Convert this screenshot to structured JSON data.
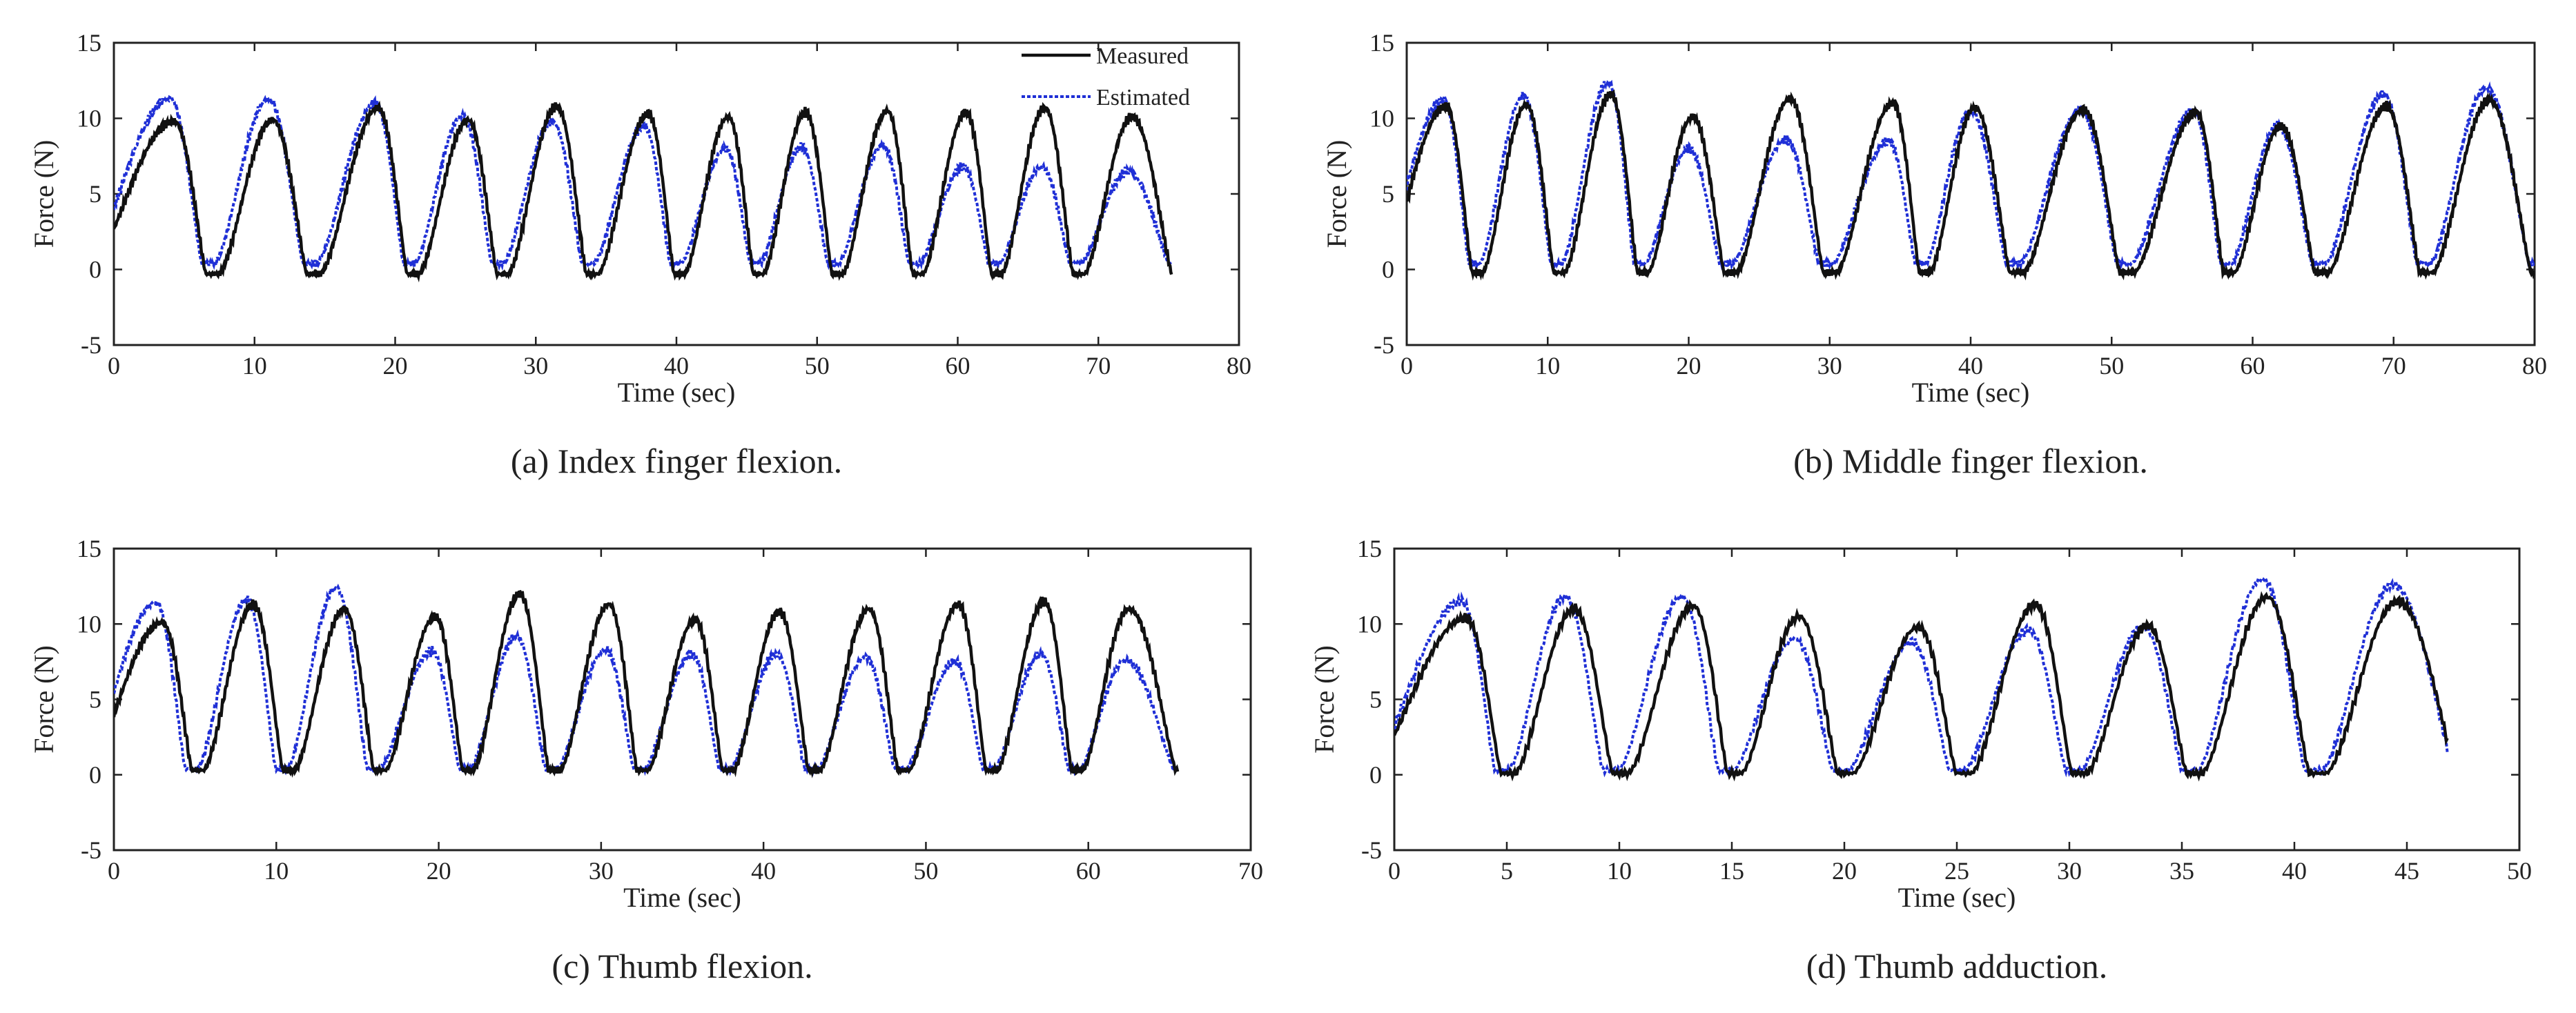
{
  "figure": {
    "colors": {
      "measured": "#111111",
      "estimated": "#1f2fd6",
      "axis": "#222222",
      "background": "#ffffff"
    }
  },
  "legend": {
    "measured": "Measured",
    "estimated": "Estimated"
  },
  "chart_data": [
    {
      "id": "a",
      "type": "line",
      "title": "(a) Index  finger flexion.",
      "xlabel": "Time (sec)",
      "ylabel": "Force (N)",
      "xlim": [
        0,
        80
      ],
      "ylim": [
        -5,
        15
      ],
      "xticks": [
        0,
        10,
        20,
        30,
        40,
        50,
        60,
        70,
        80
      ],
      "yticks": [
        -5,
        0,
        5,
        10,
        15
      ],
      "grid": false,
      "legend_location": "top-right",
      "series": [
        {
          "name": "Measured",
          "peaks": [
            [
              4.3,
              9.8
            ],
            [
              11.3,
              9.9
            ],
            [
              18.8,
              10.7
            ],
            [
              25.2,
              9.9
            ],
            [
              31.5,
              10.8
            ],
            [
              38.0,
              10.3
            ],
            [
              43.7,
              10.1
            ],
            [
              49.2,
              10.4
            ],
            [
              55.0,
              10.5
            ],
            [
              60.6,
              10.4
            ],
            [
              66.2,
              10.7
            ],
            [
              72.4,
              10.1
            ]
          ],
          "baseline": -0.3,
          "start": 0.0,
          "end": 75.2
        },
        {
          "name": "Estimated",
          "peaks": [
            [
              4.0,
              11.3
            ],
            [
              11.0,
              11.3
            ],
            [
              18.6,
              11.0
            ],
            [
              24.8,
              10.2
            ],
            [
              31.2,
              9.8
            ],
            [
              37.7,
              9.5
            ],
            [
              43.5,
              8.0
            ],
            [
              48.9,
              8.1
            ],
            [
              54.7,
              8.2
            ],
            [
              60.4,
              6.8
            ],
            [
              66.0,
              6.8
            ],
            [
              72.1,
              6.5
            ]
          ],
          "baseline": 0.4,
          "start": 0.0,
          "end": 75.2
        }
      ]
    },
    {
      "id": "b",
      "type": "line",
      "title": "(b) Middle finger flexion.",
      "xlabel": "Time (sec)",
      "ylabel": "Force (N)",
      "xlim": [
        0,
        80
      ],
      "ylim": [
        -5,
        15
      ],
      "xticks": [
        0,
        10,
        20,
        30,
        40,
        50,
        60,
        70,
        80
      ],
      "yticks": [
        -5,
        0,
        5,
        10,
        15
      ],
      "grid": false,
      "series": [
        {
          "name": "Measured",
          "peaks": [
            [
              2.8,
              10.8
            ],
            [
              8.5,
              10.9
            ],
            [
              14.5,
              11.6
            ],
            [
              20.3,
              10.1
            ],
            [
              27.2,
              11.3
            ],
            [
              34.5,
              11.0
            ],
            [
              40.3,
              10.7
            ],
            [
              48.0,
              10.6
            ],
            [
              56.0,
              10.4
            ],
            [
              62.0,
              9.5
            ],
            [
              69.5,
              10.8
            ],
            [
              76.8,
              11.2
            ]
          ],
          "baseline": -0.2,
          "start": 0.0,
          "end": 80.0
        },
        {
          "name": "Estimated",
          "peaks": [
            [
              2.6,
              11.2
            ],
            [
              8.3,
              11.5
            ],
            [
              14.3,
              12.4
            ],
            [
              20.0,
              8.0
            ],
            [
              26.9,
              8.6
            ],
            [
              34.2,
              8.5
            ],
            [
              40.0,
              10.5
            ],
            [
              47.8,
              10.5
            ],
            [
              55.8,
              10.5
            ],
            [
              61.8,
              9.5
            ],
            [
              69.3,
              11.6
            ],
            [
              76.6,
              12.0
            ]
          ],
          "baseline": 0.4,
          "start": 0.0,
          "end": 80.0
        }
      ]
    },
    {
      "id": "c",
      "type": "line",
      "title": "(c) Thumb flexion.",
      "xlabel": "Time (sec)",
      "ylabel": "Force (N)",
      "xlim": [
        0,
        70
      ],
      "ylim": [
        -5,
        15
      ],
      "xticks": [
        0,
        10,
        20,
        30,
        40,
        50,
        60,
        70
      ],
      "yticks": [
        -5,
        0,
        5,
        10,
        15
      ],
      "grid": false,
      "series": [
        {
          "name": "Measured",
          "peaks": [
            [
              3.0,
              10.1
            ],
            [
              8.6,
              11.3
            ],
            [
              14.2,
              11.0
            ],
            [
              19.8,
              10.5
            ],
            [
              25.0,
              12.0
            ],
            [
              30.5,
              11.3
            ],
            [
              35.8,
              10.3
            ],
            [
              41.0,
              10.8
            ],
            [
              46.5,
              11.0
            ],
            [
              52.0,
              11.3
            ],
            [
              57.3,
              11.5
            ],
            [
              62.5,
              11.0
            ]
          ],
          "baseline": 0.3,
          "start": 0.0,
          "end": 65.5
        },
        {
          "name": "Estimated",
          "peaks": [
            [
              2.6,
              11.4
            ],
            [
              8.2,
              11.6
            ],
            [
              13.7,
              12.4
            ],
            [
              19.6,
              8.2
            ],
            [
              24.8,
              9.2
            ],
            [
              30.3,
              8.3
            ],
            [
              35.6,
              8.0
            ],
            [
              40.8,
              8.0
            ],
            [
              46.3,
              7.8
            ],
            [
              51.8,
              7.5
            ],
            [
              57.1,
              8.0
            ],
            [
              62.3,
              7.6
            ]
          ],
          "baseline": 0.4,
          "start": 0.0,
          "end": 65.5
        }
      ]
    },
    {
      "id": "d",
      "type": "line",
      "title": "(d) Thumb adduction.",
      "xlabel": "Time (sec)",
      "ylabel": "Force (N)",
      "xlim": [
        0,
        50
      ],
      "ylim": [
        -5,
        15
      ],
      "xticks": [
        0,
        5,
        10,
        15,
        20,
        25,
        30,
        35,
        40,
        45,
        50
      ],
      "yticks": [
        -5,
        0,
        5,
        10,
        15
      ],
      "grid": false,
      "series": [
        {
          "name": "Measured",
          "peaks": [
            [
              3.2,
              10.4
            ],
            [
              8.0,
              11.0
            ],
            [
              13.3,
              11.2
            ],
            [
              18.0,
              10.5
            ],
            [
              23.3,
              9.8
            ],
            [
              28.5,
              11.3
            ],
            [
              33.5,
              9.9
            ],
            [
              38.8,
              11.8
            ],
            [
              44.6,
              11.5
            ]
          ],
          "baseline": 0.1,
          "start": 0.0,
          "end": 46.8
        },
        {
          "name": "Estimated",
          "peaks": [
            [
              3.0,
              11.5
            ],
            [
              7.6,
              11.8
            ],
            [
              12.8,
              11.8
            ],
            [
              17.8,
              9.0
            ],
            [
              23.0,
              8.8
            ],
            [
              28.2,
              9.6
            ],
            [
              33.3,
              9.8
            ],
            [
              38.6,
              13.0
            ],
            [
              44.4,
              12.6
            ]
          ],
          "baseline": 0.3,
          "start": 0.0,
          "end": 46.8
        }
      ]
    }
  ]
}
